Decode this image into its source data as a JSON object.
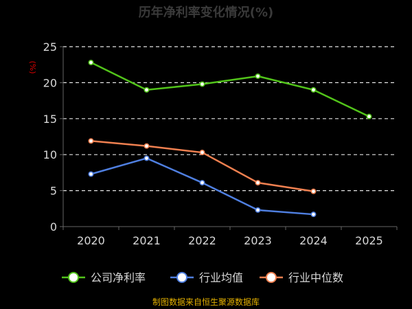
{
  "chart_data": {
    "type": "line",
    "title": "历年净利率变化情况(%)",
    "ylabel": "(%)",
    "x": [
      "2020",
      "2021",
      "2022",
      "2023",
      "2024",
      "2025"
    ],
    "ylim": [
      0,
      25
    ],
    "yticks": [
      0,
      5,
      10,
      15,
      20,
      25
    ],
    "grid": true,
    "legend_position": "bottom",
    "series": [
      {
        "name": "公司净利率",
        "color": "#52c41a",
        "values": [
          22.8,
          19.0,
          19.8,
          20.9,
          19.0,
          15.3
        ]
      },
      {
        "name": "行业均值",
        "color": "#4f7fe0",
        "values": [
          7.3,
          9.5,
          6.1,
          2.3,
          1.7,
          null
        ]
      },
      {
        "name": "行业中位数",
        "color": "#f08050",
        "values": [
          11.9,
          11.2,
          10.3,
          6.1,
          4.9,
          null
        ]
      }
    ]
  },
  "footer": {
    "source": "制图数据来自恒生聚源数据库"
  }
}
